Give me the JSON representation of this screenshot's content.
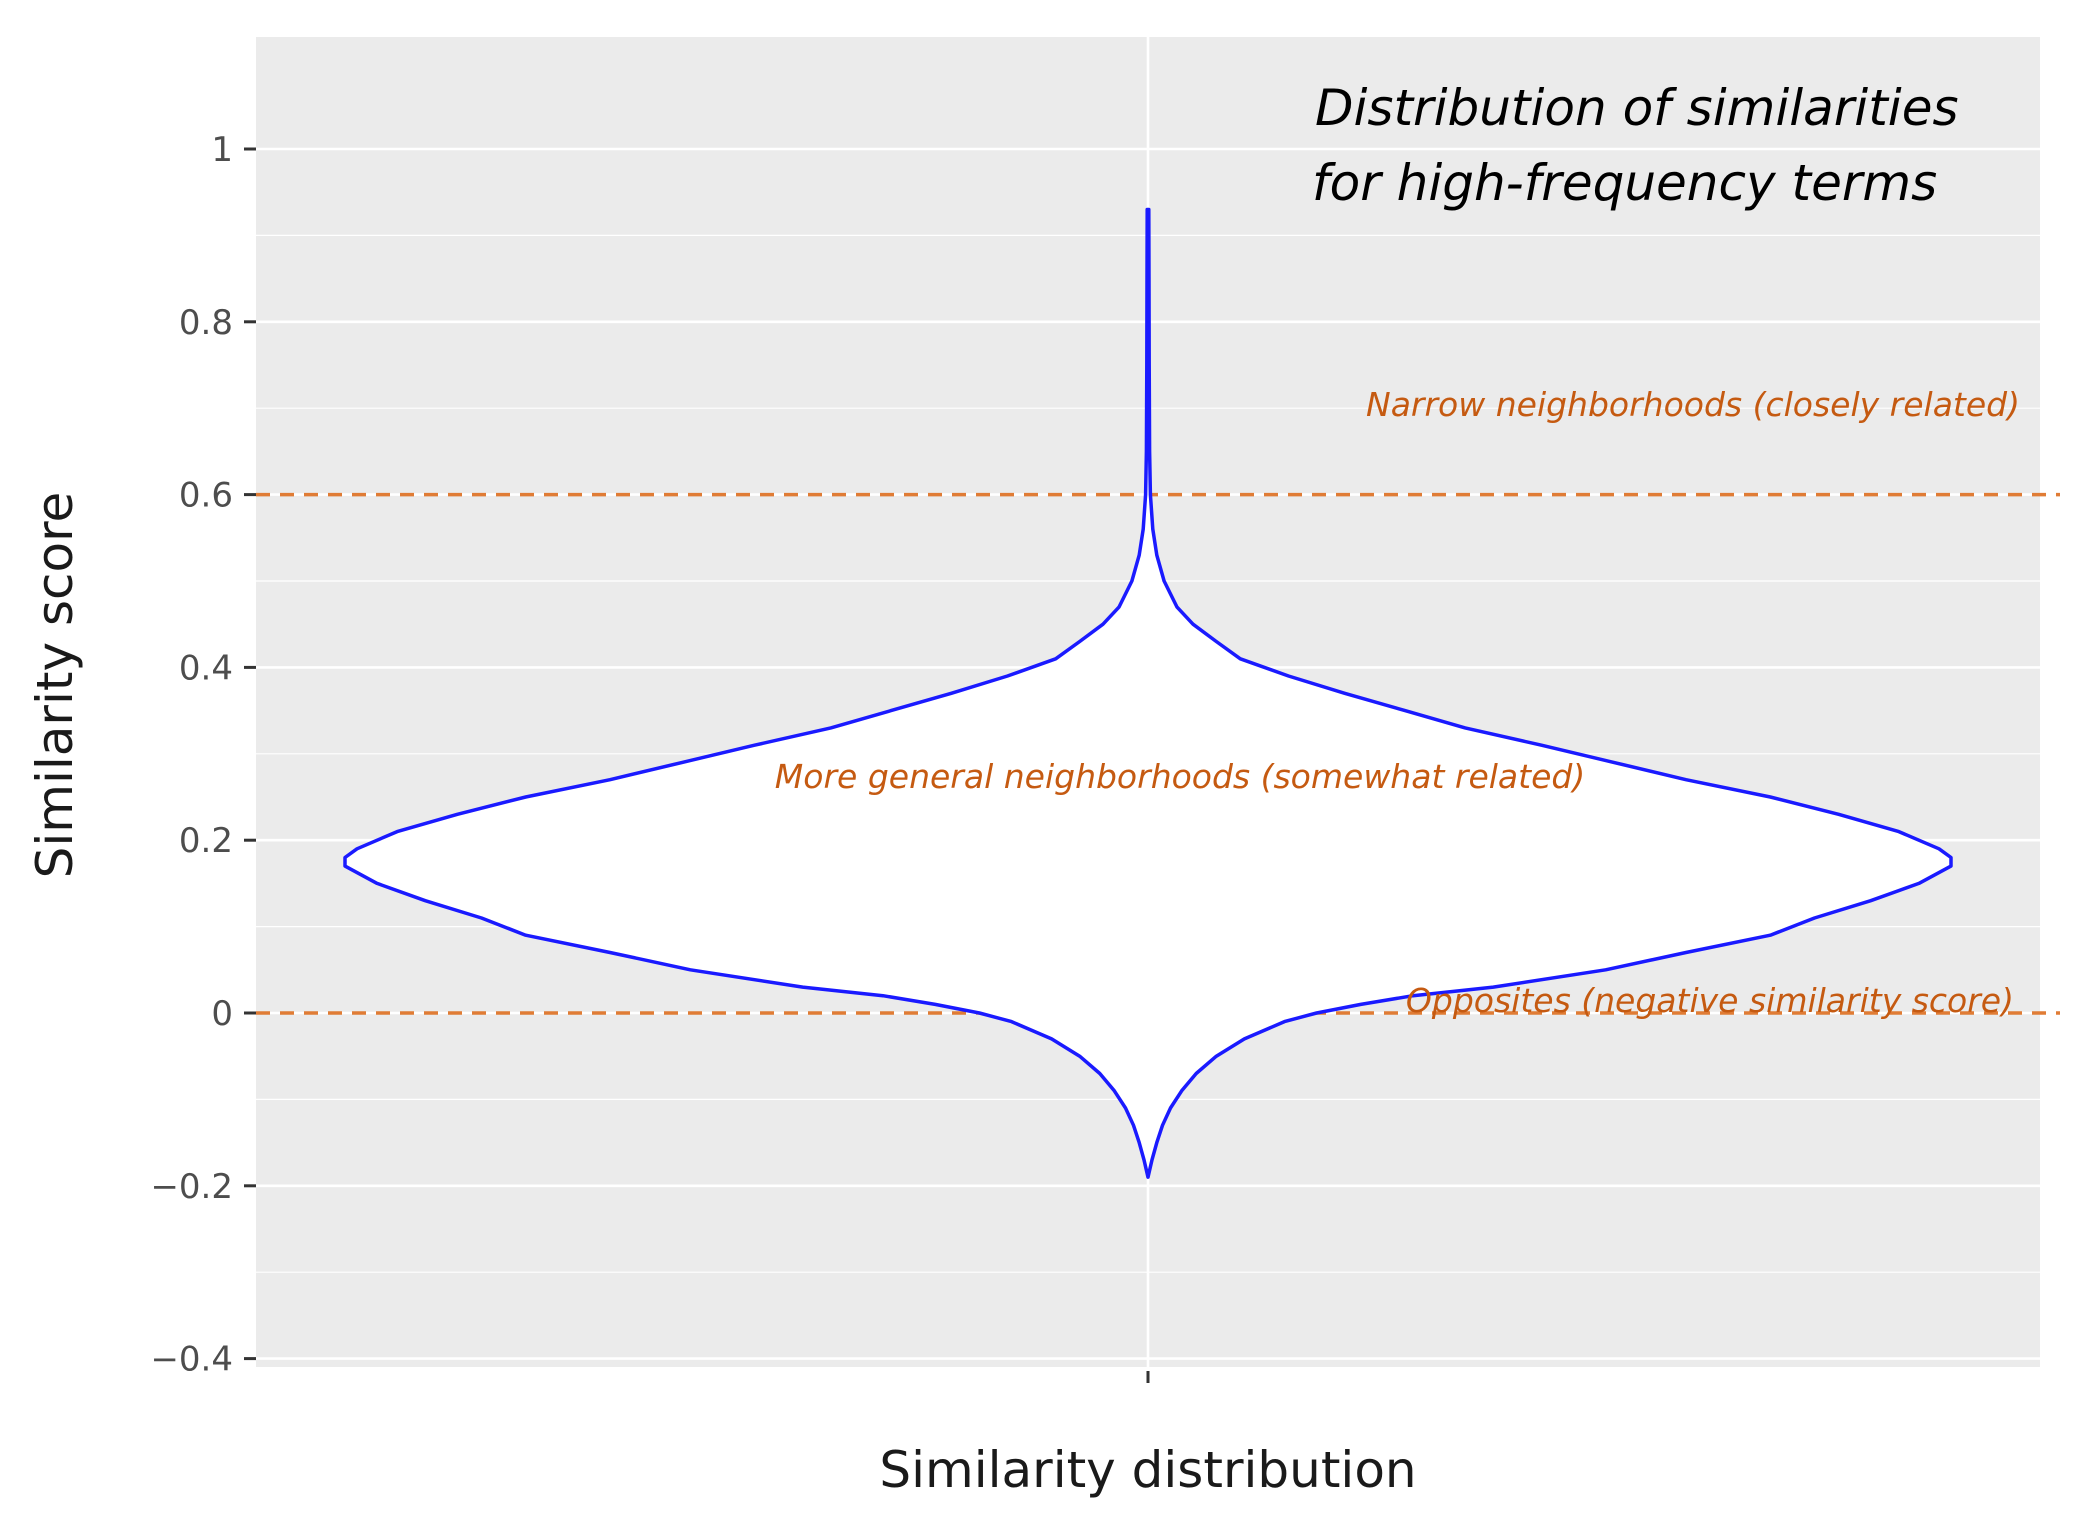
{
  "chart_data": {
    "type": "violin",
    "title_lines": [
      "Distribution of similarities",
      "for high-frequency terms"
    ],
    "xlabel": "Similarity distribution",
    "ylabel": "Similarity score",
    "ylim": [
      -0.47,
      1.07
    ],
    "yticks": [
      {
        "value": 1,
        "label": "1"
      },
      {
        "value": 0.8,
        "label": "0.8"
      },
      {
        "value": 0.6,
        "label": "0.6"
      },
      {
        "value": 0.4,
        "label": "0.4"
      },
      {
        "value": 0.2,
        "label": "0.2"
      },
      {
        "value": 0,
        "label": "0"
      },
      {
        "value": -0.2,
        "label": "−0.2"
      },
      {
        "value": -0.4,
        "label": "−0.4"
      }
    ],
    "minor_grid": [
      0.9,
      0.7,
      0.5,
      0.3,
      0.1,
      -0.1,
      -0.3
    ],
    "grid": true,
    "panel_background": "#ebebeb",
    "grid_color": "#ffffff",
    "violin_color": "#1a1aff",
    "violin_fill": "#ffffff",
    "violin": {
      "min": -0.19,
      "max": 0.93,
      "mode": 0.18,
      "density": [
        [
          -0.19,
          0.0
        ],
        [
          -0.17,
          0.005
        ],
        [
          -0.15,
          0.011
        ],
        [
          -0.13,
          0.018
        ],
        [
          -0.11,
          0.028
        ],
        [
          -0.09,
          0.042
        ],
        [
          -0.07,
          0.06
        ],
        [
          -0.05,
          0.085
        ],
        [
          -0.03,
          0.12
        ],
        [
          -0.01,
          0.17
        ],
        [
          0.0,
          0.21
        ],
        [
          0.01,
          0.265
        ],
        [
          0.02,
          0.33
        ],
        [
          0.03,
          0.43
        ],
        [
          0.05,
          0.57
        ],
        [
          0.07,
          0.67
        ],
        [
          0.09,
          0.775
        ],
        [
          0.11,
          0.83
        ],
        [
          0.13,
          0.9
        ],
        [
          0.15,
          0.96
        ],
        [
          0.17,
          1.0
        ],
        [
          0.18,
          1.0
        ],
        [
          0.19,
          0.985
        ],
        [
          0.21,
          0.935
        ],
        [
          0.23,
          0.86
        ],
        [
          0.25,
          0.775
        ],
        [
          0.27,
          0.67
        ],
        [
          0.29,
          0.58
        ],
        [
          0.31,
          0.49
        ],
        [
          0.33,
          0.395
        ],
        [
          0.35,
          0.32
        ],
        [
          0.37,
          0.245
        ],
        [
          0.39,
          0.175
        ],
        [
          0.41,
          0.115
        ],
        [
          0.43,
          0.085
        ],
        [
          0.45,
          0.056
        ],
        [
          0.47,
          0.036
        ],
        [
          0.5,
          0.02
        ],
        [
          0.53,
          0.011
        ],
        [
          0.56,
          0.006
        ],
        [
          0.6,
          0.003
        ],
        [
          0.65,
          0.002
        ],
        [
          0.75,
          0.0015
        ],
        [
          0.85,
          0.0012
        ],
        [
          0.93,
          0.001
        ]
      ]
    },
    "reference_lines": [
      {
        "y": 0.6,
        "color": "#e07c35",
        "style": "dashed"
      },
      {
        "y": 0,
        "color": "#e07c35",
        "style": "dashed"
      }
    ],
    "annotations": {
      "narrow": "Narrow neighborhoods (closely related)",
      "general": "More general neighborhoods (somewhat related)",
      "opposites": "Opposites (negative similarity score)"
    },
    "annotation_color": "#c55a11"
  }
}
